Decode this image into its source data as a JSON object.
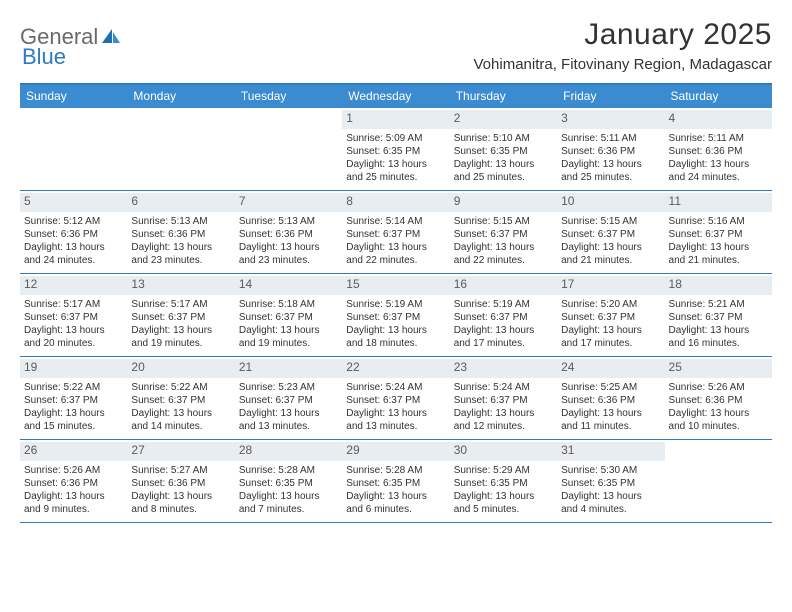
{
  "logo": {
    "text1": "General",
    "text2": "Blue"
  },
  "title": "January 2025",
  "location": "Vohimanitra, Fitovinany Region, Madagascar",
  "colors": {
    "header_bg": "#3b8bd0",
    "border": "#2f7bbf",
    "daynum_bg": "#e8edf2",
    "text": "#333333",
    "logo_gray": "#6a6a6a",
    "logo_blue": "#2f7bbf"
  },
  "weekdays": [
    "Sunday",
    "Monday",
    "Tuesday",
    "Wednesday",
    "Thursday",
    "Friday",
    "Saturday"
  ],
  "weeks": [
    [
      {
        "n": "",
        "rise": "",
        "set": "",
        "day": ""
      },
      {
        "n": "",
        "rise": "",
        "set": "",
        "day": ""
      },
      {
        "n": "",
        "rise": "",
        "set": "",
        "day": ""
      },
      {
        "n": "1",
        "rise": "Sunrise: 5:09 AM",
        "set": "Sunset: 6:35 PM",
        "day": "Daylight: 13 hours and 25 minutes."
      },
      {
        "n": "2",
        "rise": "Sunrise: 5:10 AM",
        "set": "Sunset: 6:35 PM",
        "day": "Daylight: 13 hours and 25 minutes."
      },
      {
        "n": "3",
        "rise": "Sunrise: 5:11 AM",
        "set": "Sunset: 6:36 PM",
        "day": "Daylight: 13 hours and 25 minutes."
      },
      {
        "n": "4",
        "rise": "Sunrise: 5:11 AM",
        "set": "Sunset: 6:36 PM",
        "day": "Daylight: 13 hours and 24 minutes."
      }
    ],
    [
      {
        "n": "5",
        "rise": "Sunrise: 5:12 AM",
        "set": "Sunset: 6:36 PM",
        "day": "Daylight: 13 hours and 24 minutes."
      },
      {
        "n": "6",
        "rise": "Sunrise: 5:13 AM",
        "set": "Sunset: 6:36 PM",
        "day": "Daylight: 13 hours and 23 minutes."
      },
      {
        "n": "7",
        "rise": "Sunrise: 5:13 AM",
        "set": "Sunset: 6:36 PM",
        "day": "Daylight: 13 hours and 23 minutes."
      },
      {
        "n": "8",
        "rise": "Sunrise: 5:14 AM",
        "set": "Sunset: 6:37 PM",
        "day": "Daylight: 13 hours and 22 minutes."
      },
      {
        "n": "9",
        "rise": "Sunrise: 5:15 AM",
        "set": "Sunset: 6:37 PM",
        "day": "Daylight: 13 hours and 22 minutes."
      },
      {
        "n": "10",
        "rise": "Sunrise: 5:15 AM",
        "set": "Sunset: 6:37 PM",
        "day": "Daylight: 13 hours and 21 minutes."
      },
      {
        "n": "11",
        "rise": "Sunrise: 5:16 AM",
        "set": "Sunset: 6:37 PM",
        "day": "Daylight: 13 hours and 21 minutes."
      }
    ],
    [
      {
        "n": "12",
        "rise": "Sunrise: 5:17 AM",
        "set": "Sunset: 6:37 PM",
        "day": "Daylight: 13 hours and 20 minutes."
      },
      {
        "n": "13",
        "rise": "Sunrise: 5:17 AM",
        "set": "Sunset: 6:37 PM",
        "day": "Daylight: 13 hours and 19 minutes."
      },
      {
        "n": "14",
        "rise": "Sunrise: 5:18 AM",
        "set": "Sunset: 6:37 PM",
        "day": "Daylight: 13 hours and 19 minutes."
      },
      {
        "n": "15",
        "rise": "Sunrise: 5:19 AM",
        "set": "Sunset: 6:37 PM",
        "day": "Daylight: 13 hours and 18 minutes."
      },
      {
        "n": "16",
        "rise": "Sunrise: 5:19 AM",
        "set": "Sunset: 6:37 PM",
        "day": "Daylight: 13 hours and 17 minutes."
      },
      {
        "n": "17",
        "rise": "Sunrise: 5:20 AM",
        "set": "Sunset: 6:37 PM",
        "day": "Daylight: 13 hours and 17 minutes."
      },
      {
        "n": "18",
        "rise": "Sunrise: 5:21 AM",
        "set": "Sunset: 6:37 PM",
        "day": "Daylight: 13 hours and 16 minutes."
      }
    ],
    [
      {
        "n": "19",
        "rise": "Sunrise: 5:22 AM",
        "set": "Sunset: 6:37 PM",
        "day": "Daylight: 13 hours and 15 minutes."
      },
      {
        "n": "20",
        "rise": "Sunrise: 5:22 AM",
        "set": "Sunset: 6:37 PM",
        "day": "Daylight: 13 hours and 14 minutes."
      },
      {
        "n": "21",
        "rise": "Sunrise: 5:23 AM",
        "set": "Sunset: 6:37 PM",
        "day": "Daylight: 13 hours and 13 minutes."
      },
      {
        "n": "22",
        "rise": "Sunrise: 5:24 AM",
        "set": "Sunset: 6:37 PM",
        "day": "Daylight: 13 hours and 13 minutes."
      },
      {
        "n": "23",
        "rise": "Sunrise: 5:24 AM",
        "set": "Sunset: 6:37 PM",
        "day": "Daylight: 13 hours and 12 minutes."
      },
      {
        "n": "24",
        "rise": "Sunrise: 5:25 AM",
        "set": "Sunset: 6:36 PM",
        "day": "Daylight: 13 hours and 11 minutes."
      },
      {
        "n": "25",
        "rise": "Sunrise: 5:26 AM",
        "set": "Sunset: 6:36 PM",
        "day": "Daylight: 13 hours and 10 minutes."
      }
    ],
    [
      {
        "n": "26",
        "rise": "Sunrise: 5:26 AM",
        "set": "Sunset: 6:36 PM",
        "day": "Daylight: 13 hours and 9 minutes."
      },
      {
        "n": "27",
        "rise": "Sunrise: 5:27 AM",
        "set": "Sunset: 6:36 PM",
        "day": "Daylight: 13 hours and 8 minutes."
      },
      {
        "n": "28",
        "rise": "Sunrise: 5:28 AM",
        "set": "Sunset: 6:35 PM",
        "day": "Daylight: 13 hours and 7 minutes."
      },
      {
        "n": "29",
        "rise": "Sunrise: 5:28 AM",
        "set": "Sunset: 6:35 PM",
        "day": "Daylight: 13 hours and 6 minutes."
      },
      {
        "n": "30",
        "rise": "Sunrise: 5:29 AM",
        "set": "Sunset: 6:35 PM",
        "day": "Daylight: 13 hours and 5 minutes."
      },
      {
        "n": "31",
        "rise": "Sunrise: 5:30 AM",
        "set": "Sunset: 6:35 PM",
        "day": "Daylight: 13 hours and 4 minutes."
      },
      {
        "n": "",
        "rise": "",
        "set": "",
        "day": ""
      }
    ]
  ]
}
